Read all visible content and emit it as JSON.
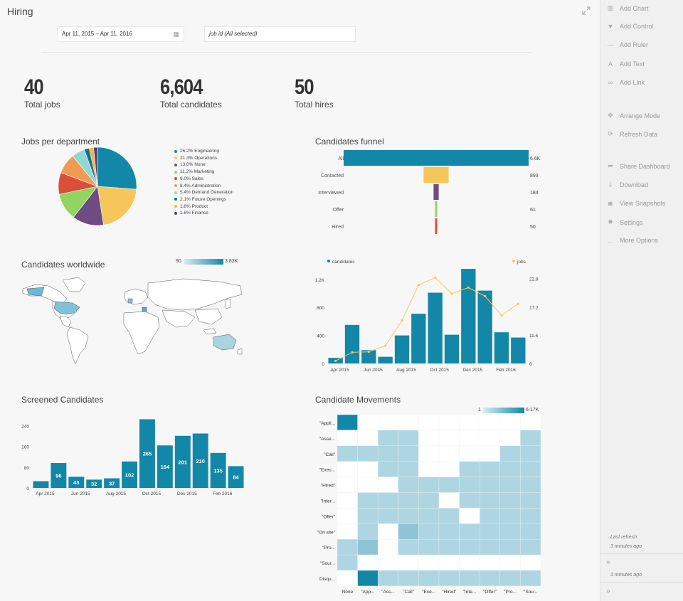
{
  "page": {
    "title": "Hiring"
  },
  "filters": {
    "date_range": "Apr 11, 2015  –  Apr 11, 2016",
    "job_filter": "job id (All selected)"
  },
  "kpis": [
    {
      "value": "40",
      "label": "Total jobs"
    },
    {
      "value": "6,604",
      "label": "Total candidates"
    },
    {
      "value": "50",
      "label": "Total hires"
    }
  ],
  "sidebar": {
    "items": [
      {
        "label": "Add Chart",
        "icon": "bar-chart-icon"
      },
      {
        "label": "Add Control",
        "icon": "filter-icon"
      },
      {
        "label": "Add Ruler",
        "icon": "ruler-icon"
      },
      {
        "label": "Add Text",
        "icon": "text-icon"
      },
      {
        "label": "Add Link",
        "icon": "link-icon"
      },
      {
        "label": "Arrange Mode",
        "icon": "arrange-icon"
      },
      {
        "label": "Refresh Data",
        "icon": "refresh-icon"
      },
      {
        "label": "Share Dashboard",
        "icon": "share-icon"
      },
      {
        "label": "Download",
        "icon": "download-icon"
      },
      {
        "label": "View Snapshots",
        "icon": "camera-icon"
      },
      {
        "label": "Settings",
        "icon": "gear-icon"
      },
      {
        "label": "More Options",
        "icon": "ellipsis-icon"
      }
    ],
    "last_refresh_label": "Last refresh:",
    "last_refresh_time": "3 minutes ago",
    "refresh_time_2": "3 minutes ago",
    "expand_1": "»",
    "expand_2": "»"
  },
  "colors": {
    "teal": "#1287a8",
    "yellow": "#f7c65a",
    "purple": "#6e4c83",
    "green": "#93d35f",
    "red": "#d94f37",
    "orange": "#f29a54",
    "lightteal": "#8fd8d3",
    "lightblue": "#a9d4e0"
  },
  "chart_data": [
    {
      "type": "pie",
      "title": "Jobs per department",
      "slices": [
        {
          "name": "26.2% Engineering",
          "value": 26.2,
          "color": "#1287a8"
        },
        {
          "name": "21.3% Operations",
          "value": 21.3,
          "color": "#f7c65a"
        },
        {
          "name": "13.0% None",
          "value": 13.0,
          "color": "#6e4c83"
        },
        {
          "name": "11.2% Marketing",
          "value": 11.2,
          "color": "#93d35f"
        },
        {
          "name": "9.0% Sales",
          "value": 9.0,
          "color": "#d94f37"
        },
        {
          "name": "8.4% Administration",
          "value": 8.4,
          "color": "#f29a54"
        },
        {
          "name": "5.4% Demand Generation",
          "value": 5.4,
          "color": "#8fd8d3"
        },
        {
          "name": "2.1% Future Openings",
          "value": 2.1,
          "color": "#1f6f8b"
        },
        {
          "name": "1.8% Product",
          "value": 1.8,
          "color": "#f0b840"
        },
        {
          "name": "1.6% Finance",
          "value": 1.6,
          "color": "#5a3d70"
        }
      ]
    },
    {
      "type": "bar",
      "title": "Candidates funnel",
      "categories": [
        "All",
        "Contacted",
        "Interviewed",
        "Offer",
        "Hired"
      ],
      "values": [
        6604,
        893,
        184,
        61,
        50
      ],
      "value_labels": [
        "6.6K",
        "893",
        "184",
        "61",
        "50"
      ],
      "colors": [
        "#1287a8",
        "#f7c65a",
        "#6e4c83",
        "#93d35f",
        "#d94f37"
      ]
    },
    {
      "type": "heatmap",
      "title": "Candidates worldwide",
      "legend_min": "90",
      "legend_max": "3.83K"
    },
    {
      "type": "bar",
      "title": "",
      "series": [
        {
          "name": "candidates",
          "values": [
            80,
            550,
            190,
            95,
            400,
            710,
            1010,
            410,
            1350,
            1040,
            445,
            370
          ]
        },
        {
          "name": "jobs",
          "values": [
            6.5,
            8.2,
            8.3,
            9.5,
            14.5,
            21.5,
            23.0,
            19.8,
            21.0,
            19.3,
            15.5,
            17.8
          ]
        }
      ],
      "x_tick_labels": [
        "Apr 2015",
        "Jun 2015",
        "Aug 2015",
        "Oct 2015",
        "Dec 2015",
        "Feb 2016"
      ],
      "y_ticks": [
        "0",
        "400",
        "800",
        "1.2K"
      ],
      "y2_ticks": [
        "6",
        "11.6",
        "17.2",
        "22.8"
      ],
      "ylim": [
        0,
        1300
      ],
      "y2lim": [
        6,
        24
      ]
    },
    {
      "type": "bar",
      "title": "Screened Candidates",
      "categories": [
        "Apr 2015",
        "May 2015",
        "Jun 2015",
        "Jul 2015",
        "Aug 2015",
        "Sep 2015",
        "Oct 2015",
        "Nov 2015",
        "Dec 2015",
        "Jan 2016",
        "Feb 2016",
        "Mar 2016"
      ],
      "values": [
        26,
        96,
        43,
        32,
        37,
        102,
        265,
        164,
        201,
        210,
        135,
        84
      ],
      "value_labels": [
        "",
        "96",
        "43",
        "32",
        "37",
        "102",
        "265",
        "164",
        "201",
        "210",
        "135",
        "84"
      ],
      "x_tick_labels": [
        "Apr 2015",
        "Jun 2015",
        "Aug 2015",
        "Oct 2015",
        "Dec 2015",
        "Feb 2016"
      ],
      "y_ticks": [
        "0",
        "80",
        "160",
        "240"
      ],
      "ylim": [
        0,
        280
      ]
    },
    {
      "type": "heatmap",
      "title": "Candidate Movements",
      "legend_min": "1",
      "legend_max": "6.17K",
      "rows": [
        "\"Appli...",
        "\"Asse...",
        "\"Call\"",
        "\"Exec...",
        "\"Hired\"",
        "\"Inter...",
        "\"Offer\"",
        "\"On site\"",
        "\"Pro...",
        "\"Sour...",
        "Disqu..."
      ],
      "cols": [
        "None",
        "\"App...",
        "\"Ass...",
        "\"Call\"",
        "\"Exe...",
        "\"Hired\"",
        "\"Inte...",
        "\"Offer\"",
        "\"Pro...",
        "\"Sou..."
      ],
      "matrix": [
        [
          3,
          0,
          0,
          0,
          0,
          0,
          0,
          0,
          0,
          0
        ],
        [
          0,
          0,
          1,
          1,
          0,
          0,
          0,
          0,
          0,
          1
        ],
        [
          1,
          1,
          1,
          1,
          0,
          0,
          0,
          0,
          1,
          1
        ],
        [
          0,
          0,
          1,
          1,
          0,
          0,
          1,
          1,
          1,
          1
        ],
        [
          0,
          0,
          0,
          1,
          1,
          1,
          1,
          1,
          1,
          1
        ],
        [
          0,
          1,
          1,
          1,
          1,
          0,
          1,
          1,
          1,
          1
        ],
        [
          0,
          1,
          1,
          1,
          1,
          1,
          0,
          1,
          1,
          1
        ],
        [
          0,
          1,
          0,
          2,
          1,
          1,
          1,
          1,
          1,
          1
        ],
        [
          1,
          2,
          0,
          1,
          1,
          1,
          1,
          1,
          1,
          1
        ],
        [
          1,
          0,
          0,
          0,
          0,
          0,
          0,
          0,
          0,
          0
        ],
        [
          0,
          3,
          1,
          1,
          1,
          1,
          1,
          1,
          1,
          1
        ]
      ]
    }
  ]
}
